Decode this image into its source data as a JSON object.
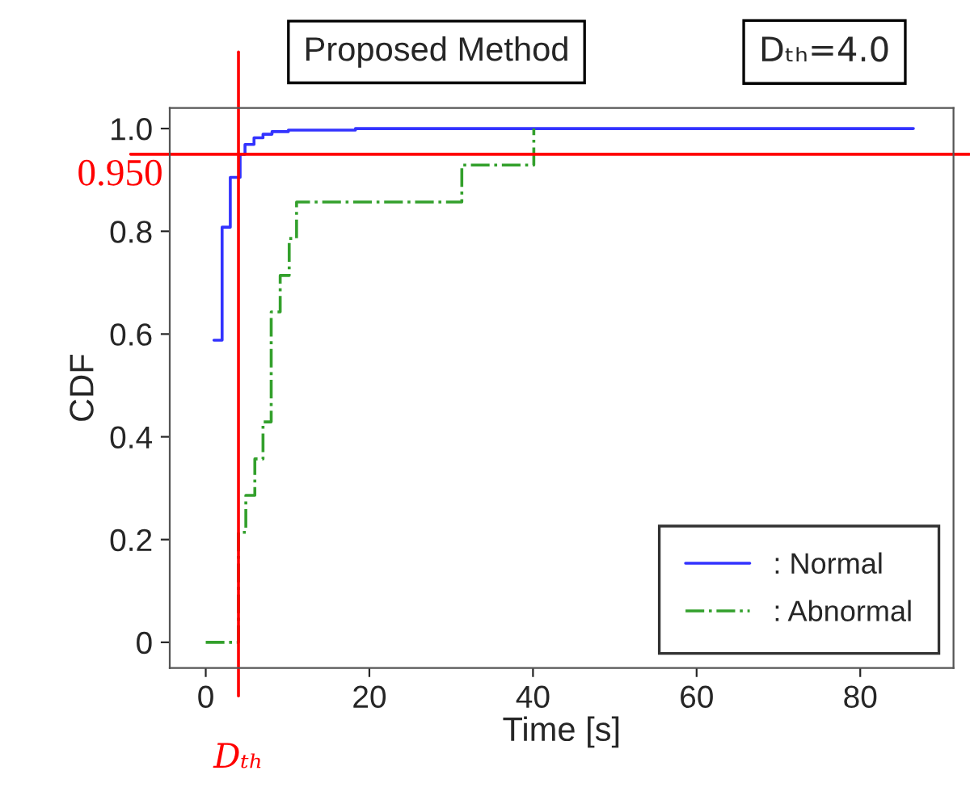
{
  "chart_data": {
    "type": "step",
    "title": "Proposed Method",
    "xlabel": "Time [s]",
    "ylabel": "CDF",
    "annotations": [
      "Dₜₕ=4.0"
    ],
    "series": [
      {
        "name": ": Normal",
        "color": "#3333ff",
        "line_style": "solid",
        "x": [
          1,
          2,
          3,
          4.2,
          4.8,
          5.9,
          7,
          8.1,
          10.1,
          18.3,
          86.5
        ],
        "values": [
          0.588,
          0.808,
          0.905,
          0.95,
          0.969,
          0.982,
          0.989,
          0.994,
          0.997,
          1.0,
          1.0
        ]
      },
      {
        "name": ": Abnormal",
        "color": "#33a02c",
        "line_style": "dashdot",
        "x": [
          0,
          4,
          4.9,
          6,
          7,
          8,
          9.1,
          10.2,
          11.1,
          31.3,
          40.1
        ],
        "values": [
          0,
          0.214,
          0.286,
          0.357,
          0.429,
          0.643,
          0.714,
          0.786,
          0.857,
          0.929,
          1.0
        ]
      }
    ],
    "ref_lines": [
      {
        "axis": "x",
        "value": 4.0,
        "label": "Dₜₕ",
        "color": "#ff0000"
      },
      {
        "axis": "y",
        "value": 0.95,
        "label": "0.950",
        "color": "#ff0000"
      }
    ],
    "xlim": [
      -4.4,
      91.4
    ],
    "ylim": [
      -0.05,
      1.04
    ],
    "xticks": [
      0,
      20,
      40,
      60,
      80
    ],
    "yticks": [
      {
        "value": 0,
        "label": "0"
      },
      0.2,
      0.4,
      0.6,
      0.8,
      {
        "value": 1.0,
        "label": "1.0"
      }
    ],
    "grid": false,
    "legend": "bottom right",
    "marker": "none"
  }
}
